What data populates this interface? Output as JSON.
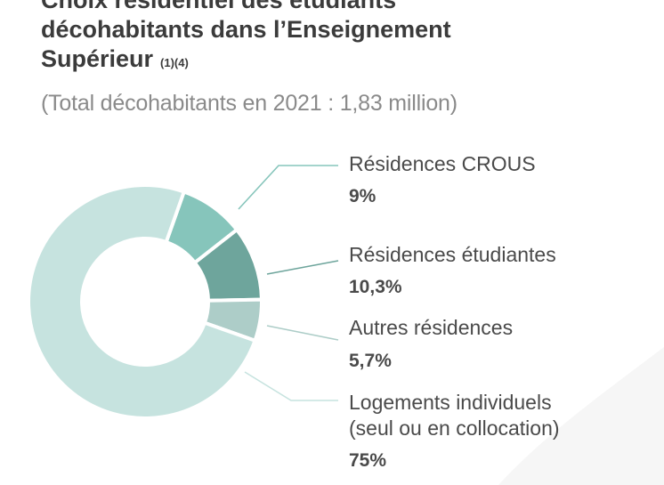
{
  "title": {
    "line1": "Choix résidentiel des étudiants",
    "line2": "décohabitants dans l’Enseignement",
    "line3": "Supérieur",
    "note": "(1)(4)"
  },
  "subtitle": "(Total décohabitants en 2021 : 1,83 million)",
  "chart_data": {
    "type": "pie",
    "donut": true,
    "title": "Choix résidentiel des étudiants décohabitants dans l’Enseignement Supérieur",
    "subtitle": "(Total décohabitants en 2021 : 1,83 million)",
    "total": "1,83 million",
    "slices": [
      {
        "key": "crous",
        "label_lines": [
          "Résidences CROUS"
        ],
        "value": 9,
        "display": "9%",
        "color": "#86c5bb"
      },
      {
        "key": "etudiantes",
        "label_lines": [
          "Résidences étudiantes"
        ],
        "value": 10.3,
        "display": "10,3%",
        "color": "#6ea59c"
      },
      {
        "key": "autres",
        "label_lines": [
          "Autres résidences"
        ],
        "value": 5.7,
        "display": "5,7%",
        "color": "#adcdc8"
      },
      {
        "key": "individuels",
        "label_lines": [
          "Logements individuels",
          "(seul ou en collocation)"
        ],
        "value": 75,
        "display": "75%",
        "color": "#c6e3df"
      }
    ],
    "legend": "right",
    "grid": false
  }
}
